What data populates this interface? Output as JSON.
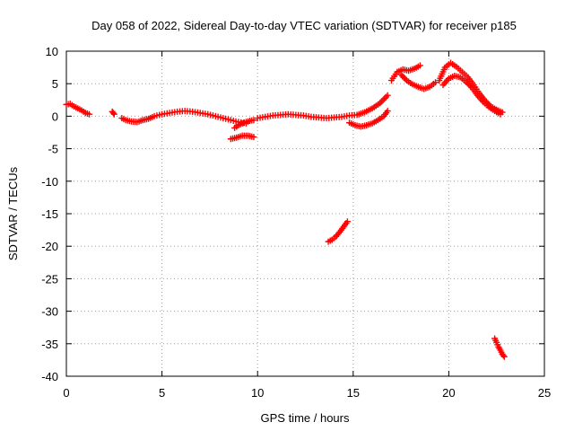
{
  "chart_data": {
    "type": "scatter",
    "title": "Day 058 of 2022, Sidereal Day-to-day VTEC variation (SDTVAR) for receiver p185",
    "xlabel": "GPS time / hours",
    "ylabel": "SDTVAR / TECUs",
    "xlim": [
      0,
      25
    ],
    "ylim": [
      -40,
      10
    ],
    "xticks": [
      0,
      5,
      10,
      15,
      20,
      25
    ],
    "yticks": [
      10,
      5,
      0,
      -5,
      -10,
      -15,
      -20,
      -25,
      -30,
      -35,
      -40
    ],
    "grid": true,
    "marker": "plus",
    "color": "#ff0000",
    "series": [
      {
        "name": "seg1",
        "x": [
          0.0,
          0.2,
          0.4,
          0.6,
          0.8,
          1.0,
          1.2
        ],
        "y": [
          1.8,
          1.9,
          1.5,
          1.2,
          0.9,
          0.5,
          0.3
        ]
      },
      {
        "name": "seg2",
        "x": [
          2.4,
          2.5
        ],
        "y": [
          0.7,
          0.3
        ]
      },
      {
        "name": "seg3",
        "x": [
          2.9,
          3.1,
          3.4,
          3.7,
          4.0,
          4.3,
          4.6,
          5.0,
          5.4,
          5.8,
          6.2,
          6.6,
          7.0,
          7.4,
          7.8,
          8.2,
          8.6,
          9.0,
          9.4
        ],
        "y": [
          -0.3,
          -0.6,
          -0.8,
          -0.9,
          -0.6,
          -0.4,
          0.0,
          0.3,
          0.5,
          0.7,
          0.8,
          0.7,
          0.5,
          0.3,
          0.0,
          -0.3,
          -0.6,
          -0.9,
          -1.1
        ]
      },
      {
        "name": "seg4",
        "x": [
          8.8,
          9.0,
          9.2,
          9.4,
          9.6,
          9.8
        ],
        "y": [
          -1.8,
          -1.4,
          -1.1,
          -0.9,
          -0.7,
          -0.6
        ]
      },
      {
        "name": "seg5",
        "x": [
          8.6,
          8.9,
          9.2,
          9.5,
          9.8
        ],
        "y": [
          -3.5,
          -3.3,
          -3.0,
          -3.0,
          -3.2
        ]
      },
      {
        "name": "seg6",
        "x": [
          10.0,
          10.4,
          10.8,
          11.2,
          11.6,
          12.0,
          12.4,
          12.8,
          13.2,
          13.6,
          14.0,
          14.4,
          14.8,
          15.2,
          15.6,
          16.0,
          16.4,
          16.8
        ],
        "y": [
          -0.3,
          -0.1,
          0.1,
          0.2,
          0.3,
          0.2,
          0.1,
          -0.1,
          -0.2,
          -0.3,
          -0.2,
          -0.1,
          0.1,
          0.2,
          0.6,
          1.2,
          2.0,
          3.2
        ]
      },
      {
        "name": "seg7",
        "x": [
          14.8,
          15.1,
          15.4,
          15.7,
          16.0,
          16.3,
          16.6,
          16.8
        ],
        "y": [
          -1.0,
          -1.4,
          -1.6,
          -1.4,
          -1.1,
          -0.6,
          0.0,
          0.8
        ]
      },
      {
        "name": "seg8",
        "x": [
          17.0,
          17.3,
          17.6,
          17.9,
          18.2,
          18.5
        ],
        "y": [
          5.5,
          6.8,
          7.2,
          7.0,
          7.3,
          7.8
        ]
      },
      {
        "name": "seg9",
        "x": [
          17.5,
          17.8,
          18.1,
          18.4,
          18.7,
          19.0,
          19.3
        ],
        "y": [
          6.4,
          5.5,
          4.9,
          4.5,
          4.2,
          4.5,
          5.2
        ]
      },
      {
        "name": "seg10",
        "x": [
          19.5,
          19.8,
          20.1,
          20.4,
          20.7,
          21.0,
          21.3,
          21.6,
          21.9,
          22.2,
          22.5,
          22.8
        ],
        "y": [
          5.5,
          7.5,
          8.2,
          7.6,
          6.8,
          6.0,
          4.8,
          3.5,
          2.4,
          1.5,
          1.0,
          0.6
        ]
      },
      {
        "name": "seg11",
        "x": [
          19.7,
          20.0,
          20.3,
          20.6,
          20.9,
          21.2,
          21.5,
          21.8,
          22.1,
          22.4,
          22.7
        ],
        "y": [
          4.8,
          5.8,
          6.2,
          6.0,
          5.3,
          4.4,
          3.2,
          2.2,
          1.4,
          0.8,
          0.3
        ]
      },
      {
        "name": "seg12",
        "x": [
          13.7,
          13.9,
          14.1,
          14.3,
          14.5,
          14.7
        ],
        "y": [
          -19.3,
          -19.0,
          -18.5,
          -17.8,
          -17.0,
          -16.2
        ]
      },
      {
        "name": "seg13",
        "x": [
          22.4,
          22.5,
          22.6,
          22.7,
          22.8,
          22.9
        ],
        "y": [
          -34.2,
          -34.8,
          -35.5,
          -36.0,
          -36.6,
          -37.0
        ]
      }
    ]
  }
}
